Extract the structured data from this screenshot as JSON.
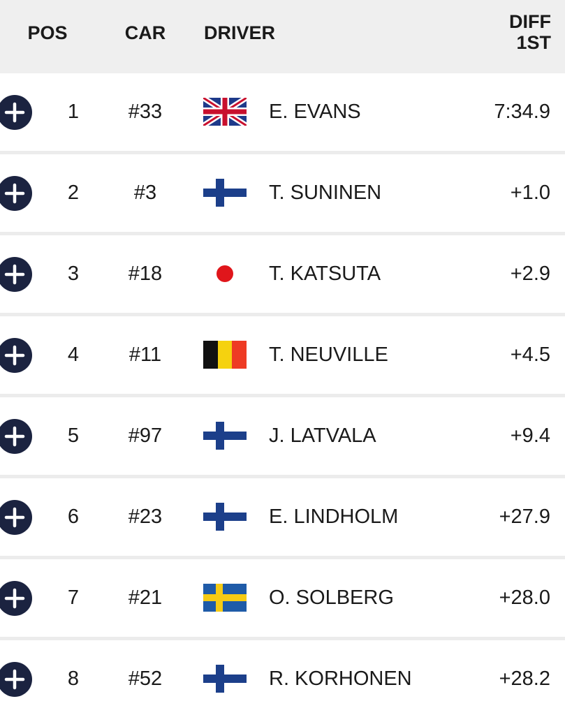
{
  "header": {
    "pos": "POS",
    "car": "CAR",
    "driver": "DRIVER",
    "diff": [
      "DIFF",
      "1ST"
    ]
  },
  "rows": [
    [
      1,
      "#33",
      "E. EVANS",
      "7:34.9"
    ],
    [
      2,
      "#3",
      "T. SUNINEN",
      "+1.0"
    ],
    [
      3,
      "#18",
      "T. KATSUTA",
      "+2.9"
    ],
    [
      4,
      "#11",
      "T. NEUVILLE",
      "+4.5"
    ],
    [
      5,
      "#97",
      "J. LATVALA",
      "+9.4"
    ],
    [
      6,
      "#23",
      "E. LINDHOLM",
      "+27.9"
    ],
    [
      7,
      "#21",
      "O. SOLBERG",
      "+28.0"
    ],
    [
      8,
      "#52",
      "R. KORHONEN",
      "+28.2"
    ]
  ]
}
